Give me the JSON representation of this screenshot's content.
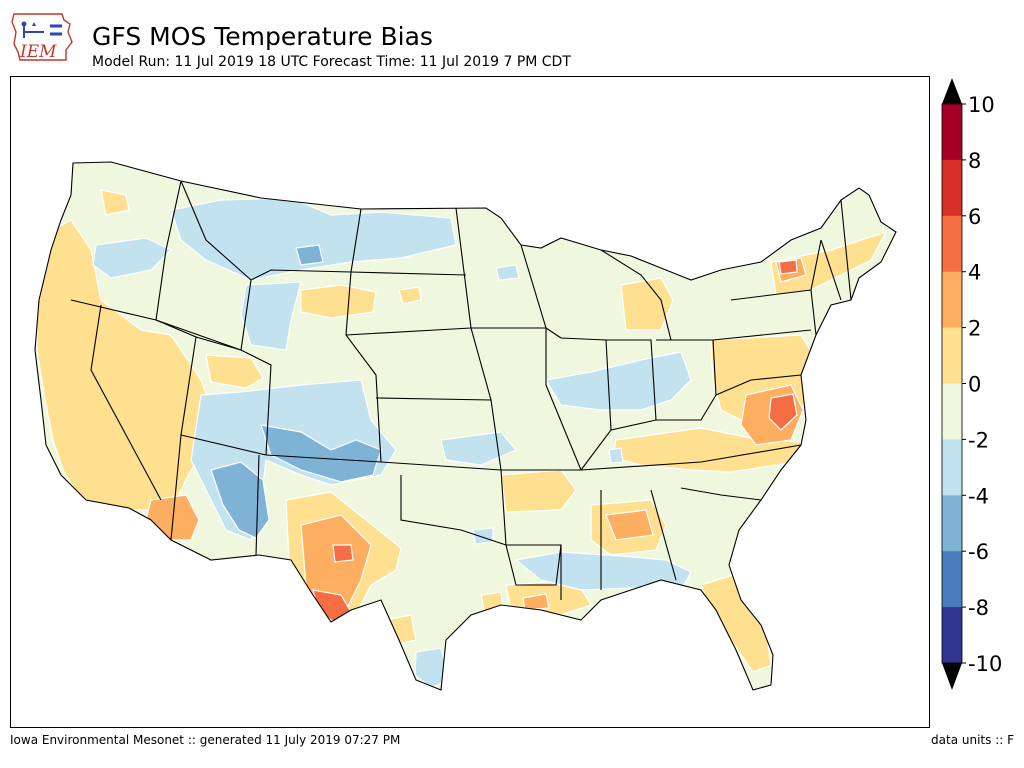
{
  "header": {
    "logo_text": "IEM",
    "title": "GFS MOS Temperature Bias",
    "subtitle": "Model Run: 11 Jul 2019 18 UTC Forecast Time: 11 Jul 2019 7 PM CDT"
  },
  "footer": {
    "left": "Iowa Environmental Mesonet :: generated 11 July 2019 07:27 PM",
    "right": "data units :: F"
  },
  "colorbar": {
    "labels": [
      "10",
      "8",
      "6",
      "4",
      "2",
      "0",
      "-2",
      "-4",
      "-6",
      "-8",
      "-10"
    ],
    "bins": [
      {
        "range": "8 to 10",
        "color": "#a50026"
      },
      {
        "range": "6 to 8",
        "color": "#d73027"
      },
      {
        "range": "4 to 6",
        "color": "#f46d43"
      },
      {
        "range": "2 to 4",
        "color": "#fdae61"
      },
      {
        "range": "0 to 2",
        "color": "#fee090"
      },
      {
        "range": "-2 to 0",
        "color": "#f0f7df"
      },
      {
        "range": "-4 to -2",
        "color": "#c2e2ef"
      },
      {
        "range": "-6 to -4",
        "color": "#7fb3d6"
      },
      {
        "range": "-8 to -6",
        "color": "#4a7bbf"
      },
      {
        "range": "-10 to -8",
        "color": "#313695"
      }
    ],
    "over_color": "#000000",
    "under_color": "#000000"
  },
  "map": {
    "background_bias_color": "#f0f7df",
    "region": "contiguous-united-states"
  }
}
